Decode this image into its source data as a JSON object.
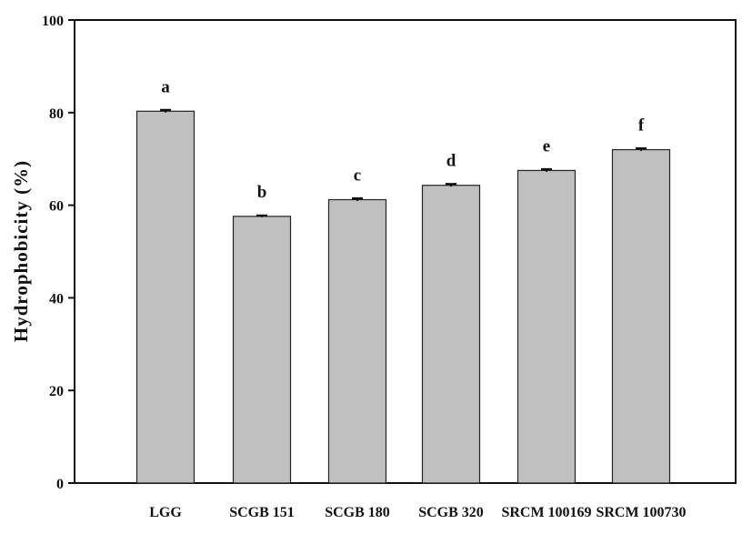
{
  "chart_data": {
    "type": "bar",
    "title": "",
    "xlabel": "",
    "ylabel": "Hydrophobicity (%)",
    "ylim": [
      0,
      100
    ],
    "yticks": [
      0,
      20,
      40,
      60,
      80,
      100
    ],
    "grid": false,
    "legend": "none",
    "bar_color": "#c0c0c0",
    "categories": [
      "LGG",
      "SCGB 151",
      "SCGB 180",
      "SCGB 320",
      "SRCM 100169",
      "SRCM 100730"
    ],
    "values": [
      80.3,
      57.6,
      61.2,
      64.3,
      67.5,
      72.0
    ],
    "errors": [
      0.3,
      0.2,
      0.3,
      0.3,
      0.3,
      0.3
    ],
    "significance_letters": [
      "a",
      "b",
      "c",
      "d",
      "e",
      "f"
    ]
  }
}
